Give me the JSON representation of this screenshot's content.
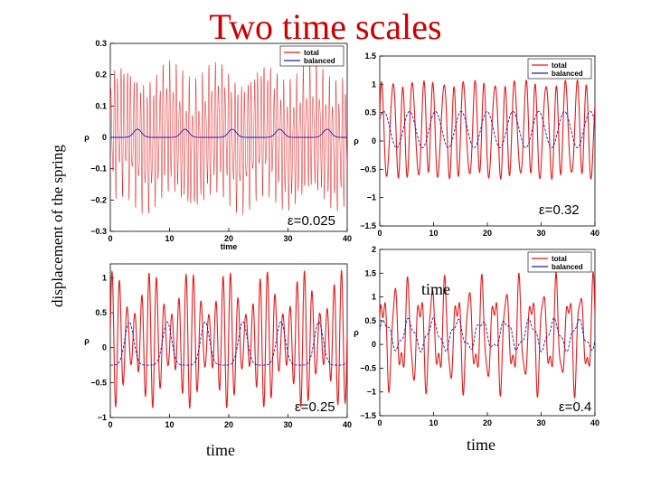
{
  "slide": {
    "title": "Two time scales",
    "ylabel": "displacement of the spring",
    "time_label_mid": "time",
    "time_label_bottom_left": "time",
    "time_label_bottom_right": "time"
  },
  "colors": {
    "total": "#e41a1c",
    "balanced": "#1a1ab4",
    "title": "#cc0000"
  },
  "chart_data": [
    {
      "type": "line",
      "epsilon_label": "ε=0.025",
      "xlabel": "time",
      "ylabel": "ρ",
      "xlim": [
        0,
        40
      ],
      "ylim": [
        -0.3,
        0.3
      ],
      "xticks": [
        0,
        10,
        20,
        30,
        40
      ],
      "xtick_labels": [
        "0",
        "10",
        "20",
        "30",
        "40"
      ],
      "yticks": [
        -0.3,
        -0.2,
        -0.1,
        0,
        0.1,
        0.2,
        0.3
      ],
      "ytick_labels": [
        "−0.3",
        "−0.2",
        "−0.1",
        "0",
        "0.1",
        "0.2",
        "0.3"
      ],
      "legend_position": "top-right",
      "series": [
        {
          "name": "total",
          "style": "red fast oscillation",
          "amplitude": 0.2,
          "fast_period": 0.55,
          "slow_period": 8
        },
        {
          "name": "balanced",
          "style": "blue slow bumps",
          "baseline": 0.0,
          "bump_height": 0.025,
          "bump_period": 8
        }
      ]
    },
    {
      "type": "line",
      "epsilon_label": "ε=0.32",
      "xlabel": "",
      "ylabel": "ρ",
      "xlim": [
        0,
        40
      ],
      "ylim": [
        -1.5,
        1.5
      ],
      "xticks": [
        0,
        10,
        20,
        30,
        40
      ],
      "xtick_labels": [
        "0",
        "10",
        "20",
        "30",
        "40"
      ],
      "yticks": [
        -1.5,
        -1,
        -0.5,
        0,
        0.5,
        1,
        1.5
      ],
      "ytick_labels": [
        "−1.5",
        "−1",
        "−0.5",
        "0",
        "0.5",
        "1",
        "1.5"
      ],
      "legend_position": "top-right",
      "series": [
        {
          "name": "total",
          "style": "red oscillation",
          "amplitude": 1.1,
          "offset": 0.2,
          "fast_period": 1.9,
          "slow_period": 4.8
        },
        {
          "name": "balanced",
          "style": "blue slow wave",
          "center": 0.2,
          "amplitude": 0.35,
          "period": 4.8
        }
      ]
    },
    {
      "type": "line",
      "epsilon_label": "ε=0.25",
      "xlabel": "",
      "ylabel": "ρ",
      "xlim": [
        0,
        40
      ],
      "ylim": [
        -1,
        1.2
      ],
      "xticks": [
        0,
        10,
        20,
        30,
        40
      ],
      "xtick_labels": [
        "0",
        "10",
        "20",
        "30",
        "40"
      ],
      "yticks": [
        -1,
        -0.5,
        0,
        0.5,
        1
      ],
      "ytick_labels": [
        "−1",
        "−0.5",
        "0",
        "0.5",
        "1"
      ],
      "legend_position": "none",
      "series": [
        {
          "name": "total",
          "style": "red oscillation",
          "amplitude": 1.0,
          "offset": 0.1,
          "fast_period": 1.25,
          "slow_period": 6.4
        },
        {
          "name": "balanced",
          "style": "blue plateau bumps",
          "baseline": -0.25,
          "bump_height": 0.6,
          "period": 6.4
        }
      ]
    },
    {
      "type": "line",
      "epsilon_label": "ε=0.4",
      "xlabel": "",
      "ylabel": "ρ",
      "xlim": [
        0,
        40
      ],
      "ylim": [
        -1.5,
        2
      ],
      "xticks": [
        0,
        10,
        20,
        30,
        40
      ],
      "xtick_labels": [
        "0",
        "10",
        "20",
        "30",
        "40"
      ],
      "yticks": [
        -1.5,
        -1,
        -0.5,
        0,
        0.5,
        1,
        1.5,
        2
      ],
      "ytick_labels": [
        "−1.5",
        "−1",
        "−0.5",
        "0",
        "0.5",
        "1",
        "1.5",
        "2"
      ],
      "legend_position": "top-right",
      "series": [
        {
          "name": "total",
          "style": "red oscillation",
          "amplitude": 1.3,
          "offset": 0.2,
          "fast_period": 2.3,
          "slow_period": 7
        },
        {
          "name": "balanced",
          "style": "blue irregular wave",
          "center": 0.2,
          "amplitude": 0.3,
          "period": 4.5
        }
      ]
    }
  ]
}
